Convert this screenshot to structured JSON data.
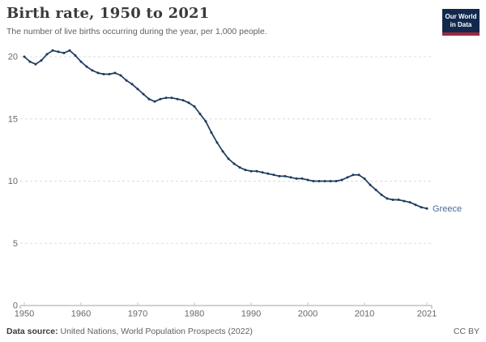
{
  "header": {
    "title": "Birth rate, 1950 to 2021",
    "subtitle": "The number of live births occurring during the year, per 1,000 people.",
    "logo": {
      "line1": "Our World",
      "line2": "in Data"
    }
  },
  "footer": {
    "source_label": "Data source:",
    "source_text": " United Nations, World Population Prospects (2022)",
    "license": "CC BY"
  },
  "colors": {
    "line": "#1e3a5f",
    "end_label": "#4c6a9c",
    "gridline": "#dcdcdc",
    "axis": "#a6a6a6",
    "tick_text": "#696969",
    "logo_bg": "#12294d",
    "logo_stripe": "#9c2b3c"
  },
  "chart_data": {
    "type": "line",
    "title": "Birth rate, 1950 to 2021",
    "subtitle": "The number of live births occurring during the year, per 1,000 people.",
    "xlabel": "",
    "ylabel": "",
    "x_range": [
      1950,
      2021
    ],
    "ylim": [
      0,
      20
    ],
    "yticks": [
      0,
      5,
      10,
      15,
      20
    ],
    "xticks": [
      1950,
      1960,
      1970,
      1980,
      1990,
      2000,
      2010,
      2021
    ],
    "grid": "horizontal-dashed",
    "legend": "end-of-line-label",
    "series": [
      {
        "name": "Greece",
        "color": "#1e3a5f",
        "label_color": "#4c6a9c",
        "x": [
          1950,
          1951,
          1952,
          1953,
          1954,
          1955,
          1956,
          1957,
          1958,
          1959,
          1960,
          1961,
          1962,
          1963,
          1964,
          1965,
          1966,
          1967,
          1968,
          1969,
          1970,
          1971,
          1972,
          1973,
          1974,
          1975,
          1976,
          1977,
          1978,
          1979,
          1980,
          1981,
          1982,
          1983,
          1984,
          1985,
          1986,
          1987,
          1988,
          1989,
          1990,
          1991,
          1992,
          1993,
          1994,
          1995,
          1996,
          1997,
          1998,
          1999,
          2000,
          2001,
          2002,
          2003,
          2004,
          2005,
          2006,
          2007,
          2008,
          2009,
          2010,
          2011,
          2012,
          2013,
          2014,
          2015,
          2016,
          2017,
          2018,
          2019,
          2020,
          2021
        ],
        "values": [
          20.0,
          19.6,
          19.4,
          19.7,
          20.2,
          20.5,
          20.4,
          20.3,
          20.5,
          20.1,
          19.6,
          19.2,
          18.9,
          18.7,
          18.6,
          18.6,
          18.7,
          18.5,
          18.1,
          17.8,
          17.4,
          17.0,
          16.6,
          16.4,
          16.6,
          16.7,
          16.7,
          16.6,
          16.5,
          16.3,
          16.0,
          15.4,
          14.8,
          13.9,
          13.1,
          12.4,
          11.8,
          11.4,
          11.1,
          10.9,
          10.8,
          10.8,
          10.7,
          10.6,
          10.5,
          10.4,
          10.4,
          10.3,
          10.2,
          10.2,
          10.1,
          10.0,
          10.0,
          10.0,
          10.0,
          10.0,
          10.1,
          10.3,
          10.5,
          10.5,
          10.2,
          9.7,
          9.3,
          8.9,
          8.6,
          8.5,
          8.5,
          8.4,
          8.3,
          8.1,
          7.9,
          7.8
        ]
      }
    ]
  }
}
